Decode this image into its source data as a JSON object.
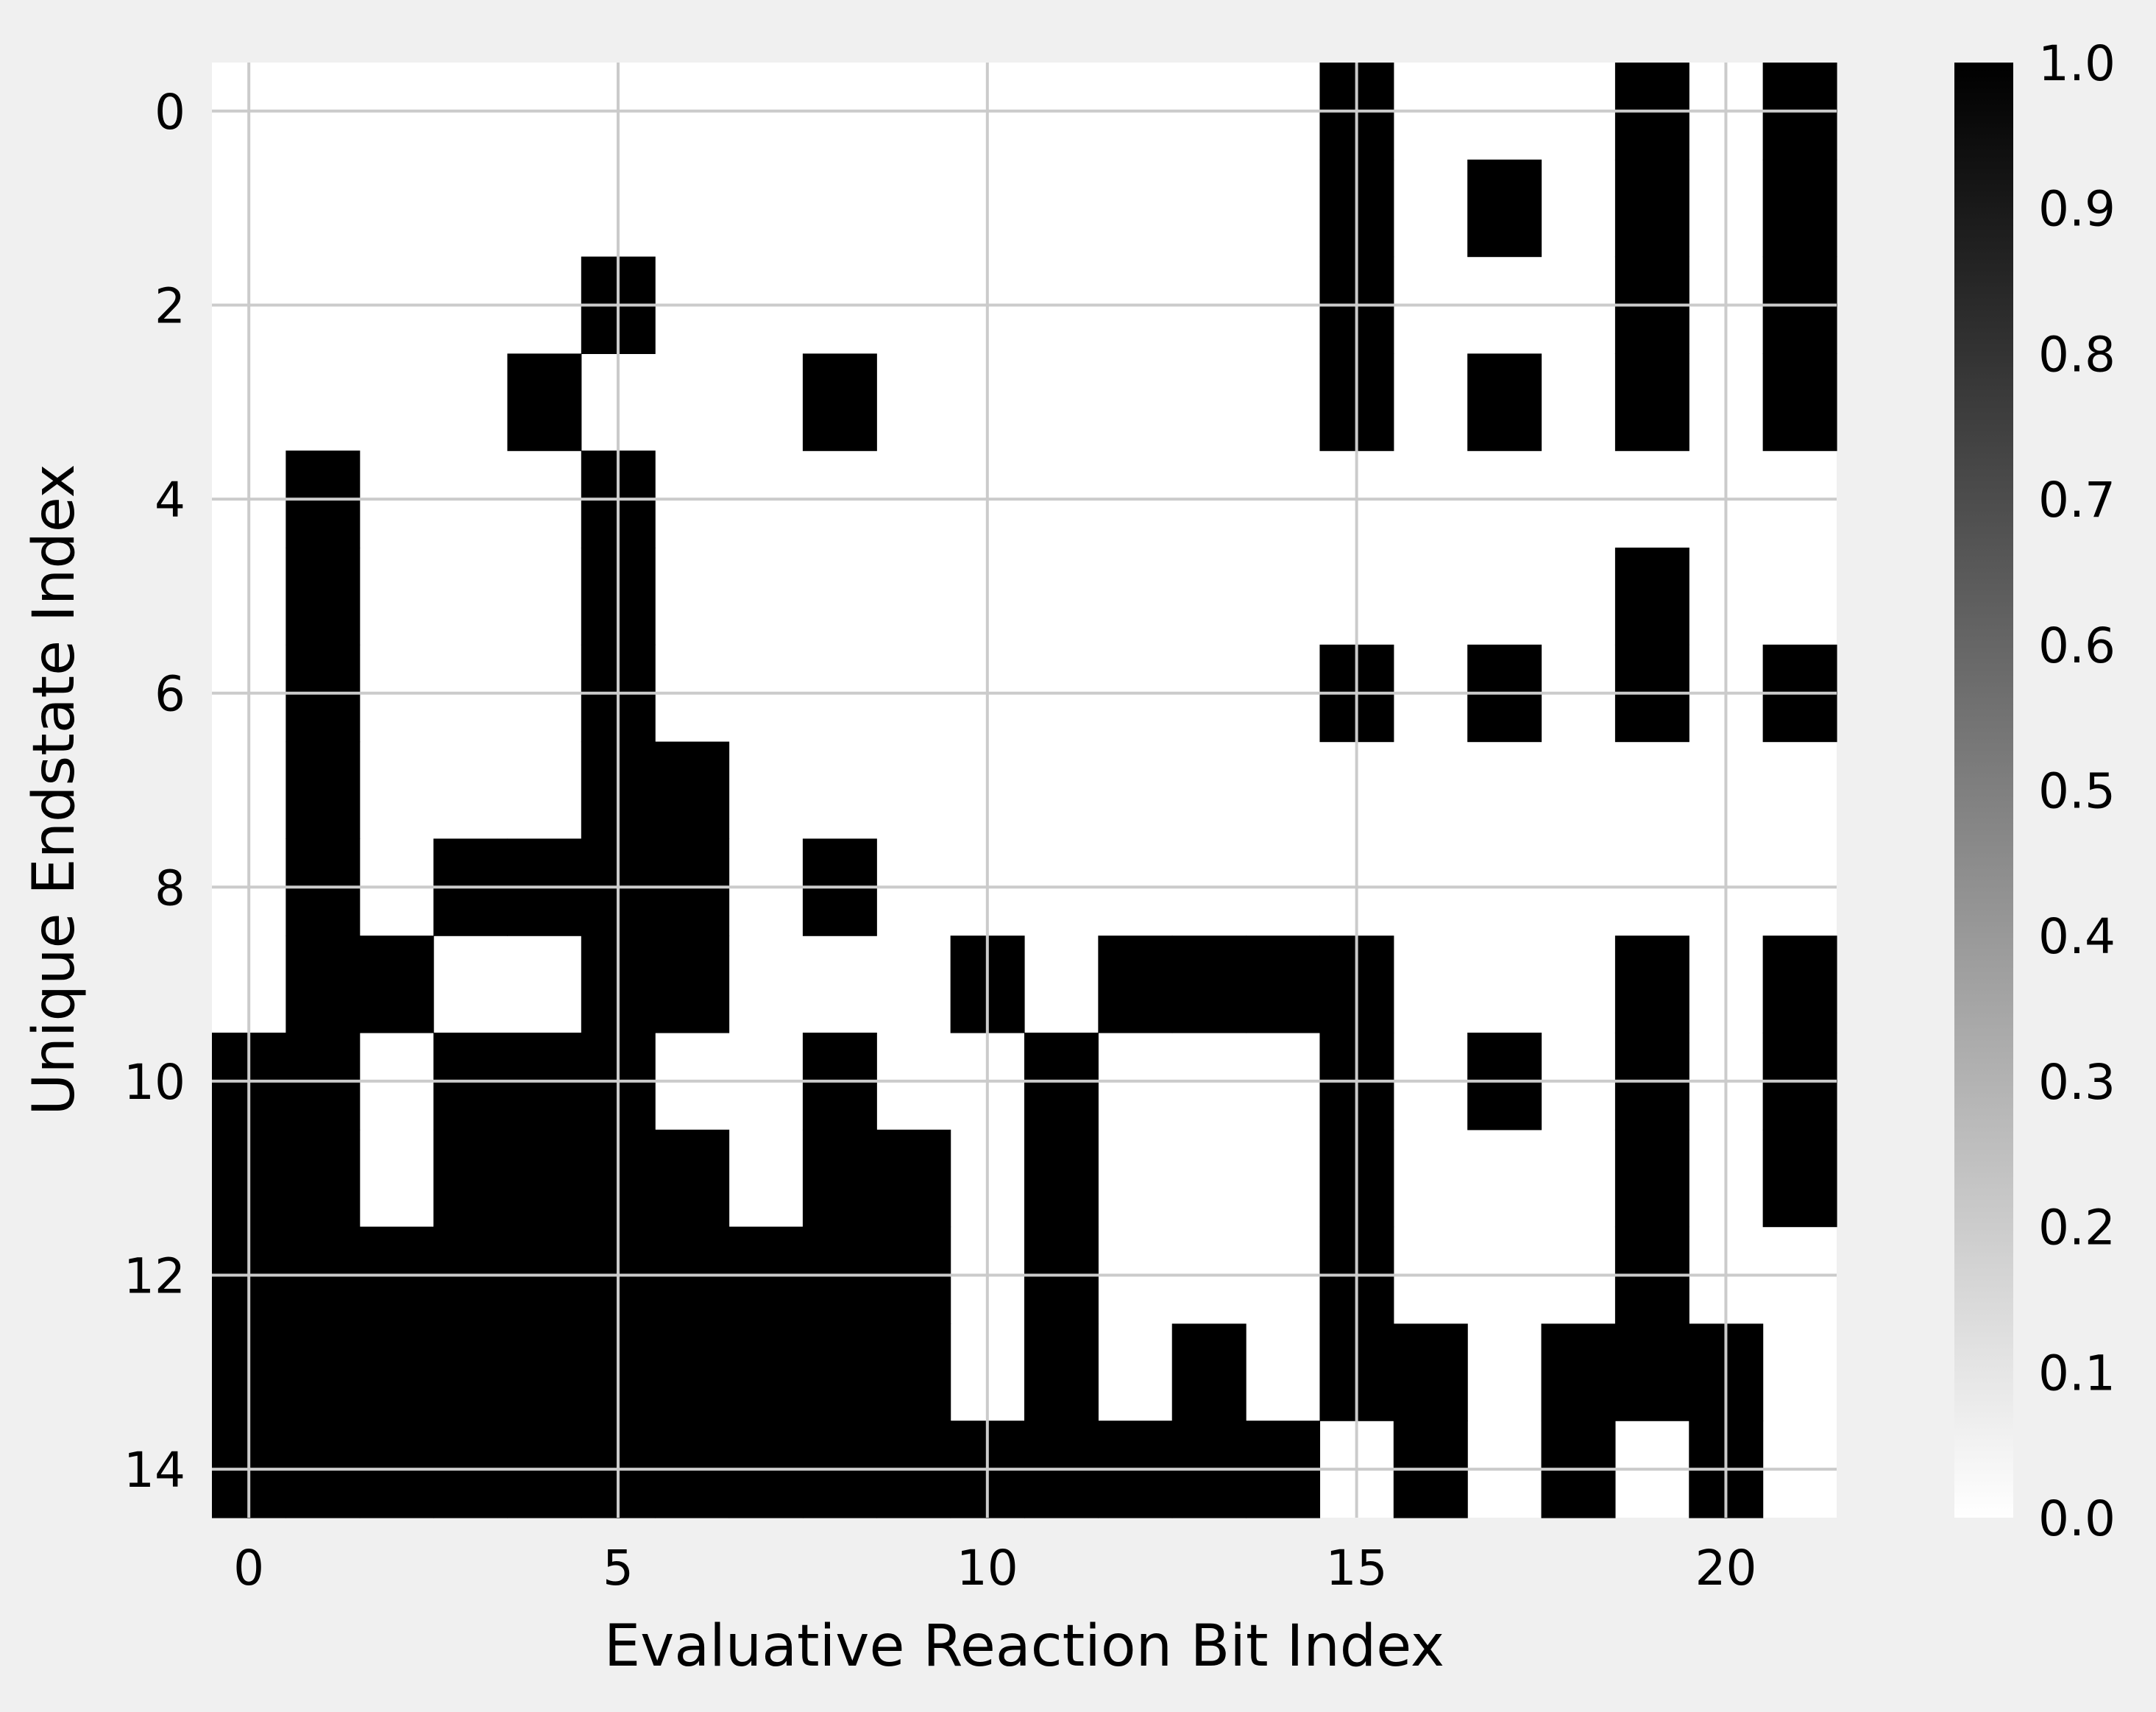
{
  "chart_data": {
    "type": "heatmap",
    "title": "",
    "xlabel": "Evaluative Reaction Bit Index",
    "ylabel": "Unique Endstate Index",
    "x_ticks": [
      0,
      5,
      10,
      15,
      20
    ],
    "y_ticks": [
      0,
      2,
      4,
      6,
      8,
      10,
      12,
      14
    ],
    "x_range": [
      -0.5,
      21.5
    ],
    "y_range": [
      -0.5,
      14.5
    ],
    "grid": true,
    "colormap": "gray_r",
    "colors": {
      "low": "#ffffff",
      "high": "#000000",
      "grid": "#cbcbcb",
      "figure_bg": "#f0f0f0"
    },
    "colorbar": {
      "min": 0.0,
      "max": 1.0,
      "ticks": [
        "0.0",
        "0.1",
        "0.2",
        "0.3",
        "0.4",
        "0.5",
        "0.6",
        "0.7",
        "0.8",
        "0.9",
        "1.0"
      ]
    },
    "matrix": [
      [
        0,
        0,
        0,
        0,
        0,
        0,
        0,
        0,
        0,
        0,
        0,
        0,
        0,
        0,
        0,
        1,
        0,
        0,
        0,
        1,
        0,
        1
      ],
      [
        0,
        0,
        0,
        0,
        0,
        0,
        0,
        0,
        0,
        0,
        0,
        0,
        0,
        0,
        0,
        1,
        0,
        1,
        0,
        1,
        0,
        1
      ],
      [
        0,
        0,
        0,
        0,
        0,
        1,
        0,
        0,
        0,
        0,
        0,
        0,
        0,
        0,
        0,
        1,
        0,
        0,
        0,
        1,
        0,
        1
      ],
      [
        0,
        0,
        0,
        0,
        1,
        0,
        0,
        0,
        1,
        0,
        0,
        0,
        0,
        0,
        0,
        1,
        0,
        1,
        0,
        1,
        0,
        1
      ],
      [
        0,
        1,
        0,
        0,
        0,
        1,
        0,
        0,
        0,
        0,
        0,
        0,
        0,
        0,
        0,
        0,
        0,
        0,
        0,
        0,
        0,
        0
      ],
      [
        0,
        1,
        0,
        0,
        0,
        1,
        0,
        0,
        0,
        0,
        0,
        0,
        0,
        0,
        0,
        0,
        0,
        0,
        0,
        1,
        0,
        0
      ],
      [
        0,
        1,
        0,
        0,
        0,
        1,
        0,
        0,
        0,
        0,
        0,
        0,
        0,
        0,
        0,
        1,
        0,
        1,
        0,
        1,
        0,
        1
      ],
      [
        0,
        1,
        0,
        0,
        0,
        1,
        1,
        0,
        0,
        0,
        0,
        0,
        0,
        0,
        0,
        0,
        0,
        0,
        0,
        0,
        0,
        0
      ],
      [
        0,
        1,
        0,
        1,
        1,
        1,
        1,
        0,
        1,
        0,
        0,
        0,
        0,
        0,
        0,
        0,
        0,
        0,
        0,
        0,
        0,
        0
      ],
      [
        0,
        1,
        1,
        0,
        0,
        1,
        1,
        0,
        0,
        0,
        1,
        0,
        1,
        1,
        1,
        1,
        0,
        0,
        0,
        1,
        0,
        1
      ],
      [
        1,
        1,
        0,
        1,
        1,
        1,
        0,
        0,
        1,
        0,
        0,
        1,
        0,
        0,
        0,
        1,
        0,
        1,
        0,
        1,
        0,
        1
      ],
      [
        1,
        1,
        0,
        1,
        1,
        1,
        1,
        0,
        1,
        1,
        0,
        1,
        0,
        0,
        0,
        1,
        0,
        0,
        0,
        1,
        0,
        1
      ],
      [
        1,
        1,
        1,
        1,
        1,
        1,
        1,
        1,
        1,
        1,
        0,
        1,
        0,
        0,
        0,
        1,
        0,
        0,
        0,
        1,
        0,
        0
      ],
      [
        1,
        1,
        1,
        1,
        1,
        1,
        1,
        1,
        1,
        1,
        0,
        1,
        0,
        1,
        0,
        1,
        1,
        0,
        1,
        1,
        1,
        0
      ],
      [
        1,
        1,
        1,
        1,
        1,
        1,
        1,
        1,
        1,
        1,
        1,
        1,
        1,
        1,
        1,
        0,
        1,
        0,
        1,
        0,
        1,
        0
      ]
    ]
  }
}
